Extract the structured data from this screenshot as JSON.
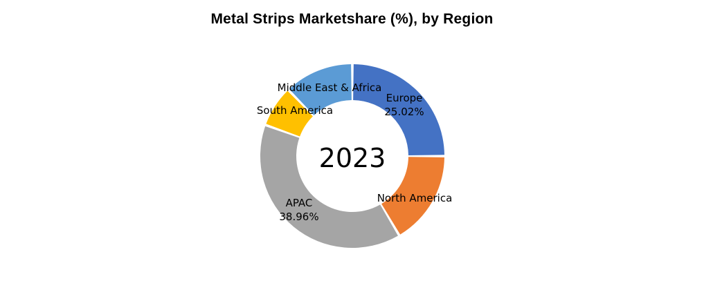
{
  "chart_data": {
    "type": "pie",
    "variant": "donut",
    "title": "Metal Strips Marketshare (%), by Region",
    "center_label": "2023",
    "legend": "none",
    "slices": [
      {
        "label": "Europe",
        "value": 25.02,
        "value_label": "25.02%",
        "color": "#4472C4"
      },
      {
        "label": "North America",
        "value": 16.5,
        "value_label": "",
        "color": "#ED7D31"
      },
      {
        "label": "APAC",
        "value": 38.96,
        "value_label": "38.96%",
        "color": "#A5A5A5"
      },
      {
        "label": "South America",
        "value": 7.3,
        "value_label": "",
        "color": "#FFC000"
      },
      {
        "label": "Middle East & Africa",
        "value": 12.22,
        "value_label": "",
        "color": "#5B9BD5"
      }
    ]
  }
}
